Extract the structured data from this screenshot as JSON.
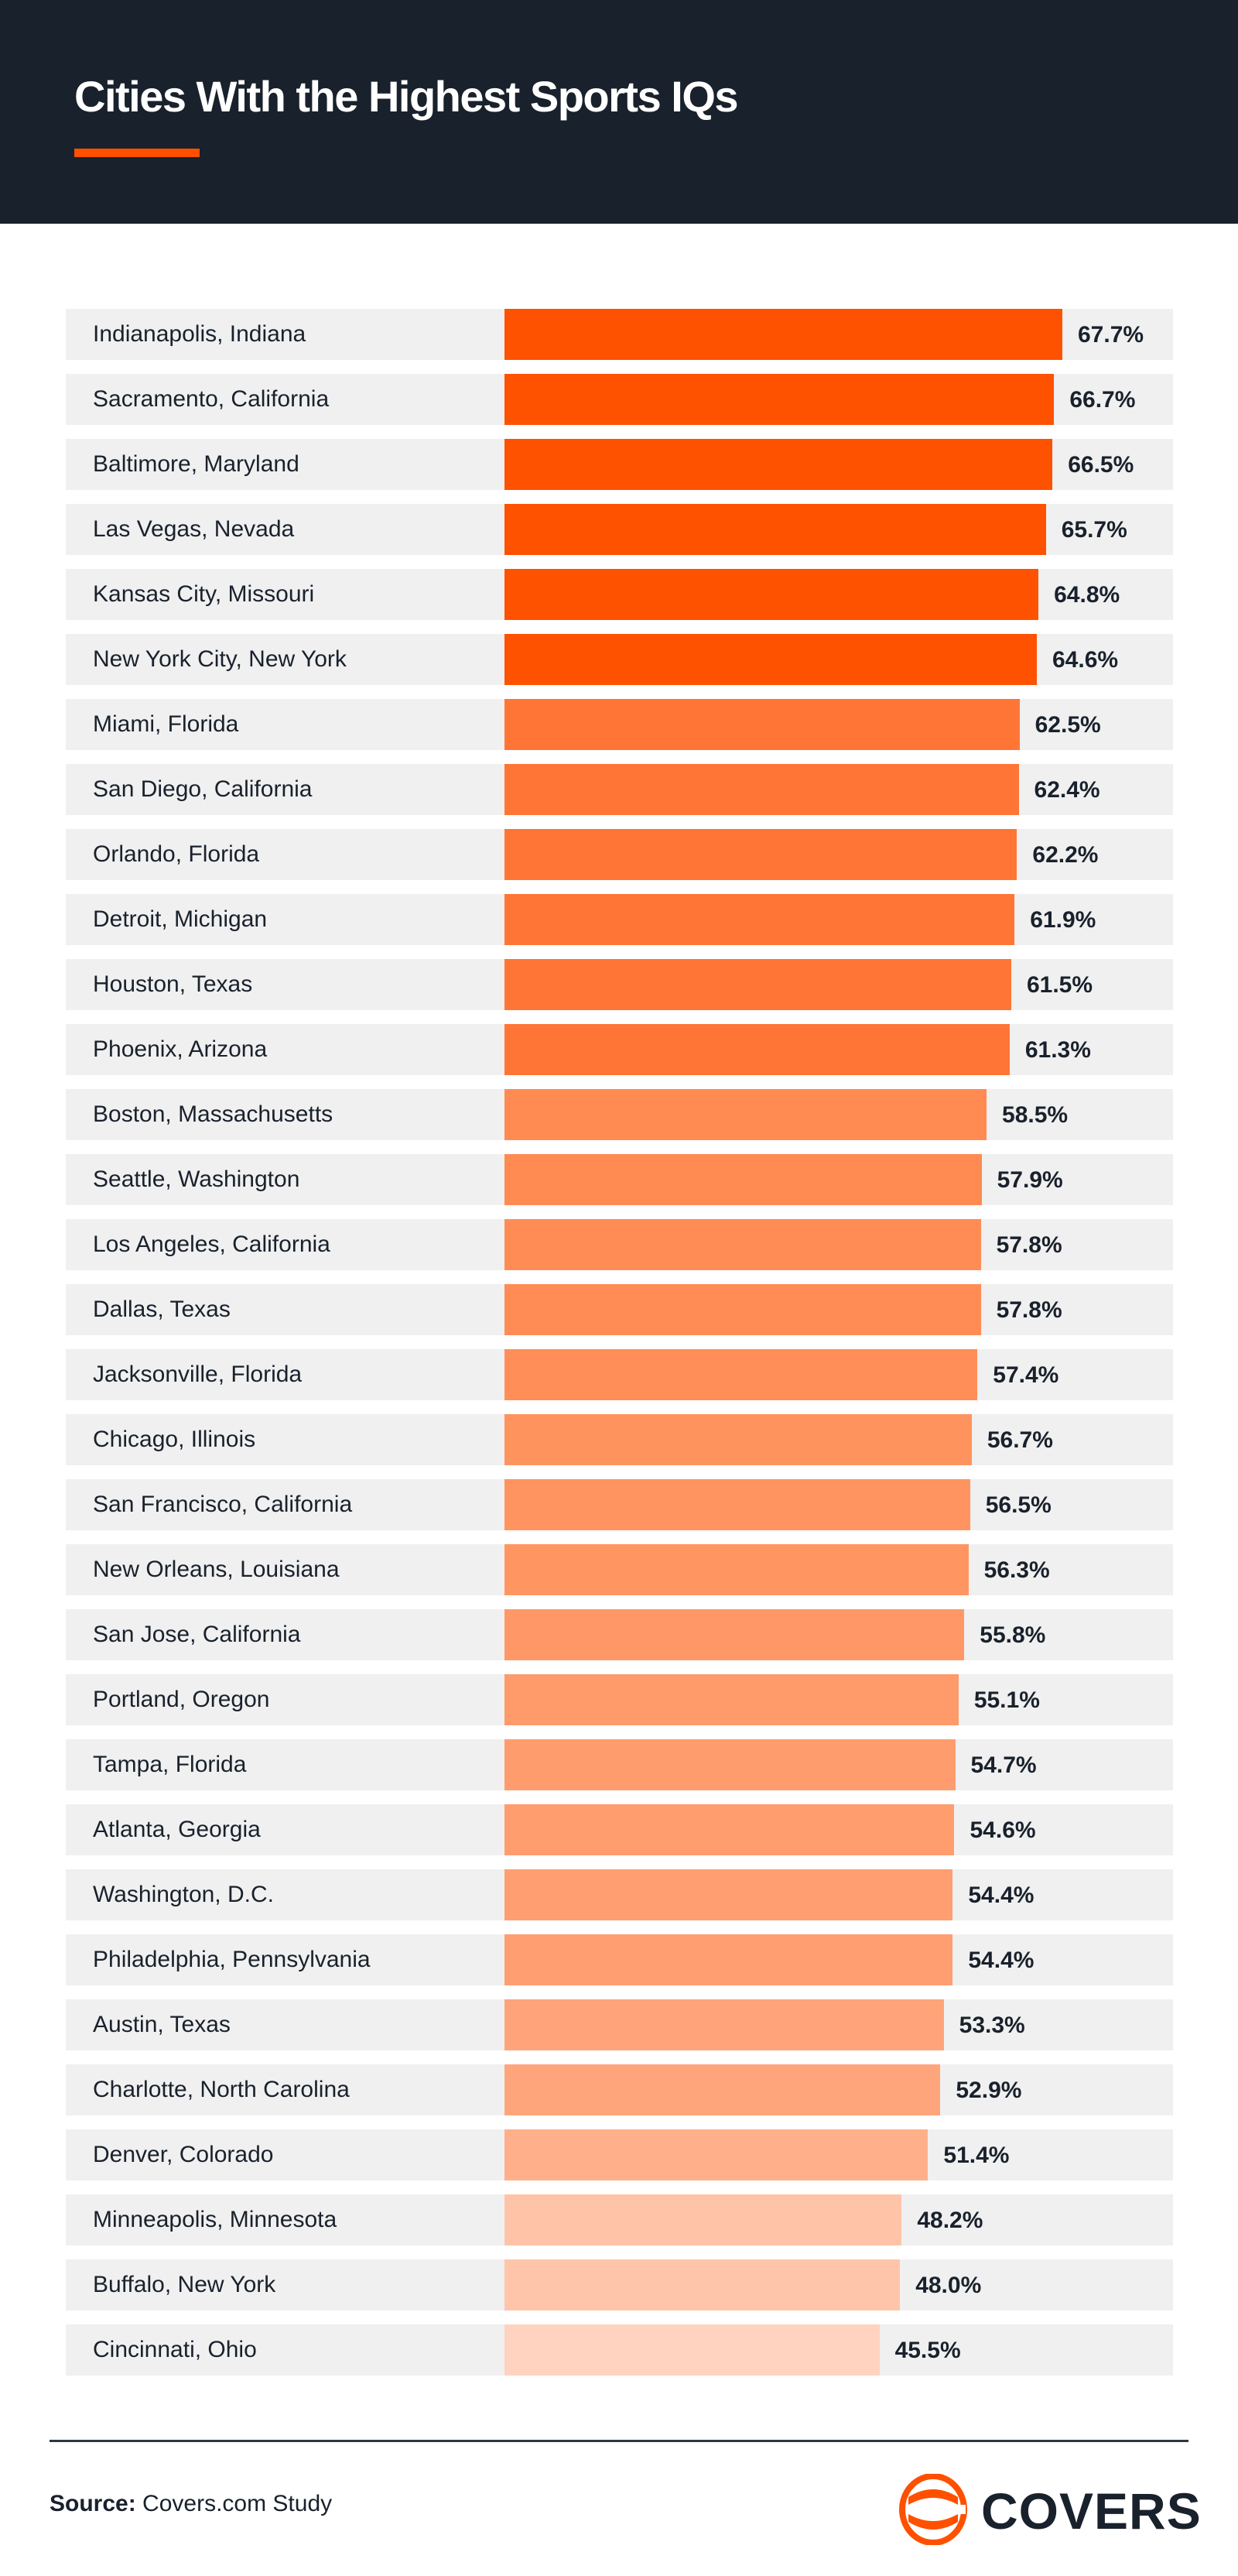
{
  "header": {
    "title": "Cities With the Highest Sports IQs",
    "accent_color": "#ff5000",
    "background_color": "#19212c"
  },
  "chart_data": {
    "type": "bar",
    "orientation": "horizontal",
    "title": "Cities With the Highest Sports IQs",
    "xlabel": "",
    "ylabel": "",
    "xlim": [
      0,
      70
    ],
    "grid": false,
    "value_suffix": "%",
    "categories": [
      "Indianapolis, Indiana",
      "Sacramento, California",
      "Baltimore, Maryland",
      "Las Vegas, Nevada",
      "Kansas City, Missouri",
      "New York City, New York",
      "Miami, Florida",
      "San Diego, California",
      "Orlando, Florida",
      "Detroit, Michigan",
      "Houston, Texas",
      "Phoenix, Arizona",
      "Boston, Massachusetts",
      "Seattle, Washington",
      "Los Angeles, California",
      "Dallas, Texas",
      "Jacksonville, Florida",
      "Chicago, Illinois",
      "San Francisco, California",
      "New Orleans, Louisiana",
      "San Jose, California",
      "Portland, Oregon",
      "Tampa, Florida",
      "Atlanta, Georgia",
      "Washington, D.C.",
      "Philadelphia, Pennsylvania",
      "Austin, Texas",
      "Charlotte, North Carolina",
      "Denver, Colorado",
      "Minneapolis, Minnesota",
      "Buffalo, New York",
      "Cincinnati, Ohio"
    ],
    "values": [
      67.7,
      66.7,
      66.5,
      65.7,
      64.8,
      64.6,
      62.5,
      62.4,
      62.2,
      61.9,
      61.5,
      61.3,
      58.5,
      57.9,
      57.8,
      57.8,
      57.4,
      56.7,
      56.5,
      56.3,
      55.8,
      55.1,
      54.7,
      54.6,
      54.4,
      54.4,
      53.3,
      52.9,
      51.4,
      48.2,
      48.0,
      45.5
    ],
    "labels": [
      "67.7%",
      "66.7%",
      "66.5%",
      "65.7%",
      "64.8%",
      "64.6%",
      "62.5%",
      "62.4%",
      "62.2%",
      "61.9%",
      "61.5%",
      "61.3%",
      "58.5%",
      "57.9%",
      "57.8%",
      "57.8%",
      "57.4%",
      "56.7%",
      "56.5%",
      "56.3%",
      "55.8%",
      "55.1%",
      "54.7%",
      "54.6%",
      "54.4%",
      "54.4%",
      "53.3%",
      "52.9%",
      "51.4%",
      "48.2%",
      "48.0%",
      "45.5%"
    ],
    "colors": [
      "#ff5200",
      "#ff5200",
      "#ff5200",
      "#ff5200",
      "#ff5200",
      "#ff5200",
      "#ff7535",
      "#ff7535",
      "#ff7535",
      "#ff7535",
      "#ff7535",
      "#ff7535",
      "#ff8a52",
      "#ff8a52",
      "#ff8c55",
      "#ff8c55",
      "#ff8e58",
      "#ff935e",
      "#ff9460",
      "#ff9662",
      "#ff9866",
      "#ff9a6a",
      "#ff9c6d",
      "#ff9d6e",
      "#ff9e70",
      "#ff9e70",
      "#ffa47a",
      "#ffa57b",
      "#ffb08a",
      "#ffc4a8",
      "#ffc5aa",
      "#ffd3bf"
    ]
  },
  "footer": {
    "source_label": "Source:",
    "source_value": "Covers.com Study",
    "brand": "COVERS",
    "brand_color": "#ff5000"
  }
}
